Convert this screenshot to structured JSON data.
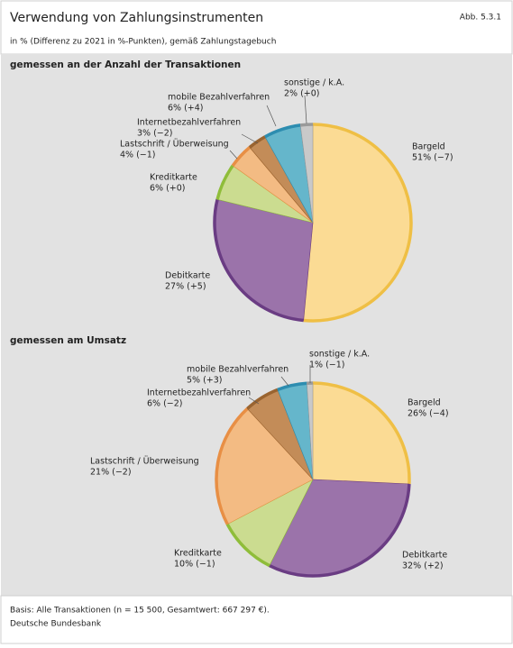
{
  "header": {
    "title": "Verwendung von Zahlungsinstrumenten",
    "figure_number": "Abb. 5.3.1",
    "subtitle": "in % (Differenz zu 2021 in %-Punkten), gemäß Zahlungstagebuch"
  },
  "chart_data": [
    {
      "type": "pie",
      "title": "gemessen an der Anzahl der Transaktionen",
      "categories": [
        "Bargeld",
        "Debitkarte",
        "Kreditkarte",
        "Lastschrift / Überweisung",
        "Internetbezahlverfahren",
        "mobile Bezahlverfahren",
        "sonstige / k.A."
      ],
      "values": [
        51,
        27,
        6,
        4,
        3,
        6,
        2
      ],
      "value_labels": [
        "51% (−7)",
        "27% (+5)",
        "6% (+0)",
        "4% (−1)",
        "3% (−2)",
        "6% (+4)",
        "2% (+0)"
      ],
      "colors": [
        "#fbdb94",
        "#9b73aa",
        "#cbdc90",
        "#f3bb83",
        "#c38c58",
        "#65b6cb",
        "#c9c9c9"
      ],
      "edge_colors": [
        "#efbf45",
        "#6a3c83",
        "#8fbd3a",
        "#e88f45",
        "#9a6430",
        "#2d8db0",
        "#9a9a9a"
      ]
    },
    {
      "type": "pie",
      "title": "gemessen am Umsatz",
      "categories": [
        "Bargeld",
        "Debitkarte",
        "Kreditkarte",
        "Lastschrift / Überweisung",
        "Internetbezahlverfahren",
        "mobile Bezahlverfahren",
        "sonstige / k.A."
      ],
      "values": [
        26,
        32,
        10,
        21,
        6,
        5,
        1
      ],
      "value_labels": [
        "26% (−4)",
        "32% (+2)",
        "10% (−1)",
        "21% (−2)",
        "6% (−2)",
        "5% (+3)",
        "1% (−1)"
      ],
      "colors": [
        "#fbdb94",
        "#9b73aa",
        "#cbdc90",
        "#f3bb83",
        "#c38c58",
        "#65b6cb",
        "#c9c9c9"
      ],
      "edge_colors": [
        "#efbf45",
        "#6a3c83",
        "#8fbd3a",
        "#e88f45",
        "#9a6430",
        "#2d8db0",
        "#9a9a9a"
      ]
    }
  ],
  "footer": {
    "note": "Basis: Alle Transaktionen (n = 15 500, Gesamtwert: 667 297 €).",
    "source": "Deutsche Bundesbank"
  }
}
